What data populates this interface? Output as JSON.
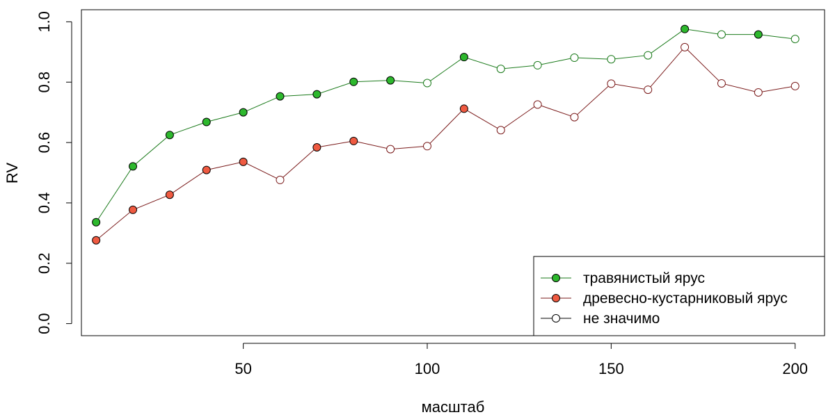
{
  "chart_data": {
    "type": "line",
    "title": "",
    "xlabel": "масштаб",
    "ylabel": "RV",
    "xlim": [
      6,
      208
    ],
    "ylim": [
      -0.04,
      1.04
    ],
    "xticks": [
      50,
      100,
      150,
      200
    ],
    "yticks": [
      0.0,
      0.2,
      0.4,
      0.6,
      0.8,
      1.0
    ],
    "xtick_labels": [
      "50",
      "100",
      "150",
      "200"
    ],
    "ytick_labels": [
      "0.0",
      "0.2",
      "0.4",
      "0.6",
      "0.8",
      "1.0"
    ],
    "grid": false,
    "legend_position": "bottom-right",
    "x": [
      10,
      20,
      30,
      40,
      50,
      60,
      70,
      80,
      90,
      100,
      110,
      120,
      130,
      140,
      150,
      160,
      170,
      180,
      190,
      200
    ],
    "series": [
      {
        "name": "травянистый ярус",
        "line_color": "#1a7a1a",
        "fill_color": "#2db82d",
        "values": [
          0.336,
          0.521,
          0.625,
          0.668,
          0.7,
          0.753,
          0.76,
          0.801,
          0.806,
          0.797,
          0.883,
          0.844,
          0.856,
          0.881,
          0.876,
          0.889,
          0.976,
          0.958,
          0.958,
          0.943
        ],
        "significant": [
          true,
          true,
          true,
          true,
          true,
          true,
          true,
          true,
          true,
          false,
          true,
          false,
          false,
          false,
          false,
          false,
          true,
          false,
          true,
          false
        ]
      },
      {
        "name": "древесно-кустарниковый ярус",
        "line_color": "#7a1a1a",
        "fill_color": "#ef5a41",
        "values": [
          0.276,
          0.377,
          0.427,
          0.509,
          0.536,
          0.476,
          0.584,
          0.605,
          0.578,
          0.588,
          0.712,
          0.641,
          0.726,
          0.684,
          0.795,
          0.775,
          0.916,
          0.796,
          0.766,
          0.787
        ],
        "significant": [
          true,
          true,
          true,
          true,
          true,
          false,
          true,
          true,
          false,
          false,
          true,
          false,
          false,
          false,
          false,
          false,
          false,
          false,
          false,
          false
        ]
      }
    ],
    "legend": [
      {
        "label": "травянистый ярус",
        "line_color": "#1a7a1a",
        "marker": "filled",
        "fill_color": "#2db82d"
      },
      {
        "label": "древесно-кустарниковый ярус",
        "line_color": "#7a1a1a",
        "marker": "filled",
        "fill_color": "#ef5a41"
      },
      {
        "label": "не значимо",
        "line_color": "#000000",
        "marker": "open",
        "fill_color": "#ffffff"
      }
    ]
  }
}
